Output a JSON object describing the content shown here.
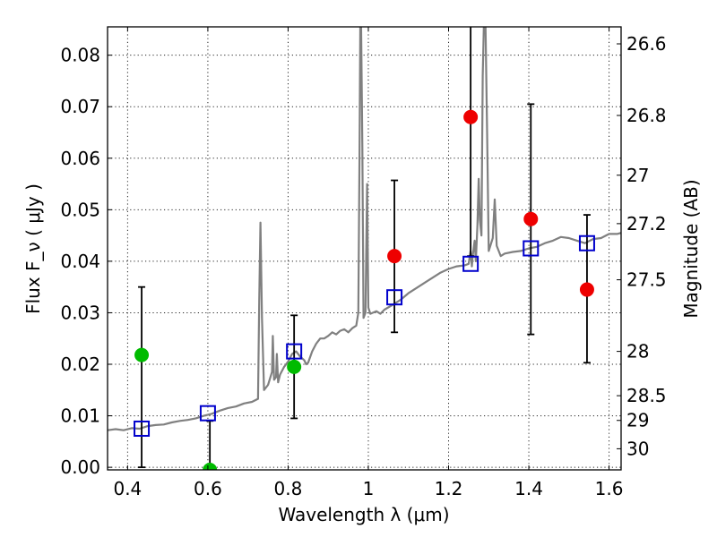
{
  "chart_data": {
    "type": "scatter",
    "xlabel": "Wavelength  λ (μm)",
    "ylabel": "Flux  F_ν  ( μJy )",
    "ylabel_right": "Magnitude (AB)",
    "xlim": [
      0.35,
      1.63
    ],
    "ylim": [
      -0.0005,
      0.0855
    ],
    "x_ticks": [
      0.4,
      0.6,
      0.8,
      1.0,
      1.2,
      1.4,
      1.6
    ],
    "x_tick_labels": [
      "0.4",
      "0.6",
      "0.8",
      "1",
      "1.2",
      "1.4",
      "1.6"
    ],
    "y_ticks": [
      0.0,
      0.01,
      0.02,
      0.03,
      0.04,
      0.05,
      0.06,
      0.07,
      0.08
    ],
    "y_tick_labels": [
      "0.00",
      "0.01",
      "0.02",
      "0.03",
      "0.04",
      "0.05",
      "0.06",
      "0.07",
      "0.08"
    ],
    "right_ticks": [
      {
        "label": "26.6",
        "flux": 0.0822
      },
      {
        "label": "26.8",
        "flux": 0.0683
      },
      {
        "label": "27",
        "flux": 0.0567
      },
      {
        "label": "27.2",
        "flux": 0.0473
      },
      {
        "label": "27.5",
        "flux": 0.0364
      },
      {
        "label": "28",
        "flux": 0.0225
      },
      {
        "label": "28.5",
        "flux": 0.0139
      },
      {
        "label": "29",
        "flux": 0.0091
      },
      {
        "label": "30",
        "flux": 0.0036
      }
    ],
    "grid": true,
    "series": [
      {
        "kind": "template-spectrum",
        "color": "#808080",
        "points": [
          [
            0.35,
            0.0072
          ],
          [
            0.37,
            0.0074
          ],
          [
            0.39,
            0.0072
          ],
          [
            0.41,
            0.0076
          ],
          [
            0.43,
            0.0075
          ],
          [
            0.45,
            0.008
          ],
          [
            0.47,
            0.0082
          ],
          [
            0.49,
            0.0083
          ],
          [
            0.51,
            0.0087
          ],
          [
            0.53,
            0.009
          ],
          [
            0.55,
            0.0092
          ],
          [
            0.57,
            0.0095
          ],
          [
            0.59,
            0.01
          ],
          [
            0.61,
            0.0104
          ],
          [
            0.63,
            0.011
          ],
          [
            0.65,
            0.0115
          ],
          [
            0.67,
            0.0118
          ],
          [
            0.69,
            0.0124
          ],
          [
            0.71,
            0.0127
          ],
          [
            0.725,
            0.0133
          ],
          [
            0.728,
            0.032
          ],
          [
            0.731,
            0.0475
          ],
          [
            0.735,
            0.029
          ],
          [
            0.74,
            0.015
          ],
          [
            0.75,
            0.016
          ],
          [
            0.76,
            0.0185
          ],
          [
            0.762,
            0.0255
          ],
          [
            0.765,
            0.017
          ],
          [
            0.77,
            0.0175
          ],
          [
            0.772,
            0.022
          ],
          [
            0.775,
            0.0165
          ],
          [
            0.78,
            0.018
          ],
          [
            0.79,
            0.0195
          ],
          [
            0.8,
            0.0205
          ],
          [
            0.81,
            0.022
          ],
          [
            0.82,
            0.0225
          ],
          [
            0.83,
            0.0215
          ],
          [
            0.84,
            0.0208
          ],
          [
            0.845,
            0.02
          ],
          [
            0.85,
            0.0203
          ],
          [
            0.86,
            0.0225
          ],
          [
            0.87,
            0.024
          ],
          [
            0.88,
            0.025
          ],
          [
            0.89,
            0.025
          ],
          [
            0.9,
            0.0255
          ],
          [
            0.91,
            0.0262
          ],
          [
            0.92,
            0.0258
          ],
          [
            0.93,
            0.0265
          ],
          [
            0.94,
            0.0268
          ],
          [
            0.95,
            0.0262
          ],
          [
            0.96,
            0.027
          ],
          [
            0.97,
            0.0275
          ],
          [
            0.975,
            0.03
          ],
          [
            0.978,
            0.06
          ],
          [
            0.98,
            0.086
          ],
          [
            0.982,
            0.086
          ],
          [
            0.985,
            0.062
          ],
          [
            0.988,
            0.029
          ],
          [
            0.993,
            0.03
          ],
          [
            0.997,
            0.055
          ],
          [
            1.0,
            0.031
          ],
          [
            1.005,
            0.0298
          ],
          [
            1.02,
            0.0303
          ],
          [
            1.03,
            0.0298
          ],
          [
            1.04,
            0.0306
          ],
          [
            1.06,
            0.0315
          ],
          [
            1.08,
            0.0325
          ],
          [
            1.1,
            0.0338
          ],
          [
            1.12,
            0.0348
          ],
          [
            1.14,
            0.0358
          ],
          [
            1.16,
            0.0368
          ],
          [
            1.18,
            0.0378
          ],
          [
            1.2,
            0.0385
          ],
          [
            1.22,
            0.039
          ],
          [
            1.24,
            0.0392
          ],
          [
            1.25,
            0.0395
          ],
          [
            1.255,
            0.042
          ],
          [
            1.258,
            0.039
          ],
          [
            1.26,
            0.041
          ],
          [
            1.265,
            0.044
          ],
          [
            1.268,
            0.04
          ],
          [
            1.272,
            0.047
          ],
          [
            1.275,
            0.056
          ],
          [
            1.278,
            0.048
          ],
          [
            1.282,
            0.045
          ],
          [
            1.285,
            0.076
          ],
          [
            1.288,
            0.086
          ],
          [
            1.292,
            0.086
          ],
          [
            1.296,
            0.065
          ],
          [
            1.3,
            0.042
          ],
          [
            1.31,
            0.0445
          ],
          [
            1.315,
            0.052
          ],
          [
            1.32,
            0.043
          ],
          [
            1.33,
            0.041
          ],
          [
            1.34,
            0.0415
          ],
          [
            1.36,
            0.0418
          ],
          [
            1.38,
            0.042
          ],
          [
            1.4,
            0.0425
          ],
          [
            1.42,
            0.0428
          ],
          [
            1.44,
            0.0435
          ],
          [
            1.46,
            0.044
          ],
          [
            1.48,
            0.0447
          ],
          [
            1.5,
            0.0445
          ],
          [
            1.52,
            0.044
          ],
          [
            1.54,
            0.0435
          ],
          [
            1.56,
            0.0443
          ],
          [
            1.58,
            0.0445
          ],
          [
            1.6,
            0.0453
          ],
          [
            1.62,
            0.0453
          ],
          [
            1.63,
            0.0455
          ]
        ]
      },
      {
        "kind": "model-photometry",
        "marker": "open-square",
        "color": "#0000cc",
        "points": [
          [
            0.435,
            0.0075
          ],
          [
            0.6,
            0.0105
          ],
          [
            0.815,
            0.0225
          ],
          [
            1.065,
            0.033
          ],
          [
            1.255,
            0.0395
          ],
          [
            1.405,
            0.0425
          ],
          [
            1.545,
            0.0435
          ]
        ]
      },
      {
        "kind": "observed-photometry",
        "marker": "filled-circle",
        "points": [
          {
            "x": 0.435,
            "y": 0.0218,
            "err_lo": 0.0,
            "err_hi": 0.035,
            "color": "#00bb00"
          },
          {
            "x": 0.605,
            "y": -0.0005,
            "err_lo": -0.0005,
            "err_hi": 0.009,
            "color": "#00bb00"
          },
          {
            "x": 0.815,
            "y": 0.0195,
            "err_lo": 0.0095,
            "err_hi": 0.0295,
            "color": "#00bb00"
          },
          {
            "x": 1.065,
            "y": 0.041,
            "err_lo": 0.0262,
            "err_hi": 0.0557,
            "color": "#ee0000"
          },
          {
            "x": 1.255,
            "y": 0.068,
            "err_lo": 0.041,
            "err_hi": 0.086,
            "color": "#ee0000"
          },
          {
            "x": 1.405,
            "y": 0.0482,
            "err_lo": 0.0258,
            "err_hi": 0.0705,
            "color": "#ee0000"
          },
          {
            "x": 1.545,
            "y": 0.0345,
            "err_lo": 0.0203,
            "err_hi": 0.049,
            "color": "#ee0000"
          }
        ]
      }
    ]
  }
}
